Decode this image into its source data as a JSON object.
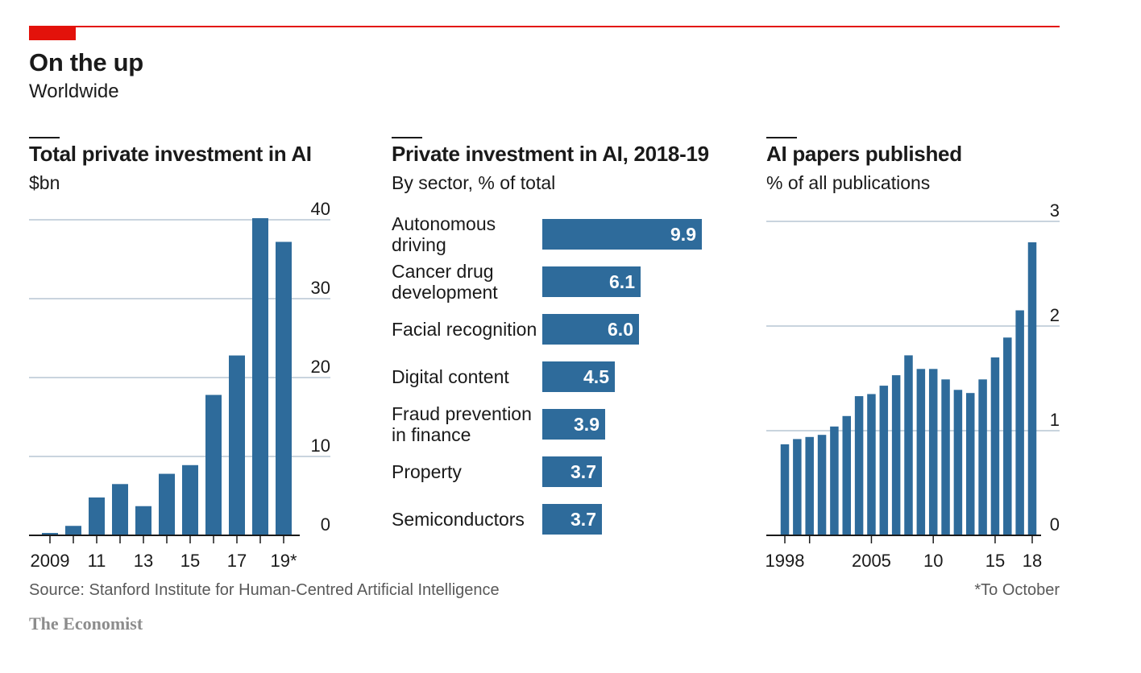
{
  "header": {
    "title": "On the up",
    "subtitle": "Worldwide",
    "accent_color": "#e3120b"
  },
  "footer": {
    "source": "Source: Stanford Institute for Human-Centred Artificial Intelligence",
    "note": "*To October",
    "brand": "The Economist"
  },
  "colors": {
    "bar": "#2e6b9b",
    "grid": "#b7c6d3",
    "axis": "#1a1a1a"
  },
  "chart_data": [
    {
      "type": "bar",
      "title": "Total private investment in AI",
      "subtitle": "$bn",
      "x": [
        2009,
        2010,
        2011,
        2012,
        2013,
        2014,
        2015,
        2016,
        2017,
        2018,
        2019
      ],
      "x_tick_labels": [
        "2009",
        "",
        "11",
        "",
        "13",
        "",
        "15",
        "",
        "17",
        "",
        "19*"
      ],
      "values": [
        0.3,
        1.2,
        4.8,
        6.5,
        3.7,
        7.8,
        8.9,
        17.8,
        22.8,
        40.2,
        37.2
      ],
      "ylim": [
        0,
        40
      ],
      "yticks": [
        "0",
        "10",
        "20",
        "30",
        "40"
      ],
      "ytick_values": [
        0,
        10,
        20,
        30,
        40
      ],
      "grid": true,
      "y_axis_side": "right"
    },
    {
      "type": "bar",
      "orientation": "horizontal",
      "title": "Private investment in AI, 2018-19",
      "subtitle": "By sector, % of total",
      "categories": [
        [
          "Autonomous",
          "driving"
        ],
        [
          "Cancer drug",
          "development"
        ],
        [
          "Facial recognition"
        ],
        [
          "Digital content"
        ],
        [
          "Fraud prevention",
          "in finance"
        ],
        [
          "Property"
        ],
        [
          "Semiconductors"
        ]
      ],
      "values": [
        9.9,
        6.1,
        6.0,
        4.5,
        3.9,
        3.7,
        3.7
      ],
      "value_labels": [
        "9.9",
        "6.1",
        "6.0",
        "4.5",
        "3.9",
        "3.7",
        "3.7"
      ]
    },
    {
      "type": "bar",
      "title": "AI papers published",
      "subtitle": "% of all publications",
      "x": [
        1998,
        1999,
        2000,
        2001,
        2002,
        2003,
        2004,
        2005,
        2006,
        2007,
        2008,
        2009,
        2010,
        2011,
        2012,
        2013,
        2014,
        2015,
        2016,
        2017,
        2018
      ],
      "x_tick_labels": [
        "1998",
        "",
        "",
        "",
        "",
        "",
        "",
        "2005",
        "",
        "",
        "",
        "",
        "10",
        "",
        "",
        "",
        "",
        "15",
        "",
        "",
        "18"
      ],
      "x_tick_marks": [
        1998,
        2000,
        2005,
        2010,
        2015,
        2018
      ],
      "values": [
        0.87,
        0.92,
        0.94,
        0.96,
        1.04,
        1.14,
        1.33,
        1.35,
        1.43,
        1.53,
        1.72,
        1.59,
        1.59,
        1.49,
        1.39,
        1.36,
        1.49,
        1.7,
        1.89,
        2.15,
        2.8
      ],
      "ylim": [
        0,
        3
      ],
      "yticks": [
        "0",
        "1",
        "2",
        "3"
      ],
      "ytick_values": [
        0,
        1,
        2,
        3
      ],
      "grid": true,
      "y_axis_side": "right"
    }
  ]
}
